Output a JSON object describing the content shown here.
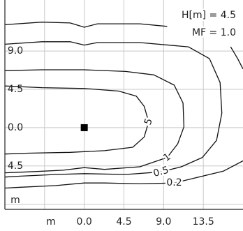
{
  "chart_data": {
    "type": "contour",
    "annotations": [
      "H[m] = 4.5",
      "MF = 1.0"
    ],
    "xlabel": "m",
    "ylabel": "m",
    "xlim": [
      -9,
      18
    ],
    "ylim": [
      -9.6,
      15
    ],
    "xticks": [
      {
        "value": 0,
        "label": "0.0"
      },
      {
        "value": 4.5,
        "label": "4.5"
      },
      {
        "value": 9,
        "label": "9.0"
      },
      {
        "value": 13.5,
        "label": "13.5"
      }
    ],
    "yticks": [
      {
        "value": 9,
        "label": "9.0"
      },
      {
        "value": 4.5,
        "label": "4.5"
      },
      {
        "value": 0,
        "label": "0.0"
      },
      {
        "value": -4.5,
        "label": "4.5"
      }
    ],
    "xgrid": [
      -4.5,
      0,
      4.5,
      9,
      13.5
    ],
    "ygrid": [
      9,
      4.5,
      0,
      -4.5,
      -9
    ],
    "grid_color": "#c8c8c8",
    "line_color": "#111111",
    "marker": {
      "x": 0,
      "y": 0,
      "color": "#000000"
    },
    "contours": [
      {
        "level": 0.2,
        "x": [
          -9,
          -4.8,
          -1.6,
          0,
          1.5,
          6.3,
          9.4,
          null,
          16.6,
          17.4,
          18,
          null,
          18,
          15.8,
          12.6,
          10.2,
          6.3,
          2.3,
          0,
          -3.2,
          -7.2,
          -9
        ],
        "y": [
          12.1,
          12.4,
          12.3,
          11.8,
          12.2,
          12.2,
          11.9,
          null,
          9.5,
          8.1,
          6.9,
          null,
          -3.9,
          -5.1,
          -5.9,
          -6.5,
          -6.6,
          -6.5,
          -6.5,
          -6.8,
          -7.0,
          -7.1
        ]
      },
      {
        "level": 0.5,
        "x": [
          -9,
          -4.8,
          -1.6,
          0,
          1.5,
          6.3,
          11.8,
          14.2,
          15.4,
          15.6,
          15.0,
          13.4,
          11.0,
          8.7,
          4.7,
          0,
          -3.2,
          -7.2,
          -9
        ],
        "y": [
          9.8,
          10.1,
          10.1,
          9.7,
          10.0,
          10.0,
          9.5,
          8.1,
          5.3,
          1.7,
          -1.5,
          -3.5,
          -4.6,
          -5.2,
          -5.5,
          -5.4,
          -5.5,
          -5.7,
          -5.8
        ]
      },
      {
        "level": 1,
        "x": [
          -9,
          -4.8,
          0,
          4.7,
          7.9,
          10.2,
          11.2,
          11.3,
          10.6,
          9.4,
          6.3,
          2.3,
          0,
          -2.4,
          -6.4,
          -9
        ],
        "y": [
          6.7,
          6.8,
          6.8,
          6.6,
          6.2,
          5.0,
          2.9,
          0.1,
          -1.9,
          -3.5,
          -4.6,
          -4.9,
          -4.7,
          -5.0,
          -5.2,
          -5.3
        ]
      },
      {
        "level": 5,
        "x": [
          -9,
          -4.8,
          0,
          3.9,
          5.9,
          6.8,
          7.3,
          6.8,
          5.5,
          2.3,
          -1.6,
          -6.4,
          -9
        ],
        "y": [
          4.9,
          4.7,
          4.6,
          4.3,
          3.7,
          2.5,
          0.7,
          -1.1,
          -2.3,
          -2.7,
          -2.9,
          -3.0,
          -3.1
        ]
      }
    ]
  }
}
